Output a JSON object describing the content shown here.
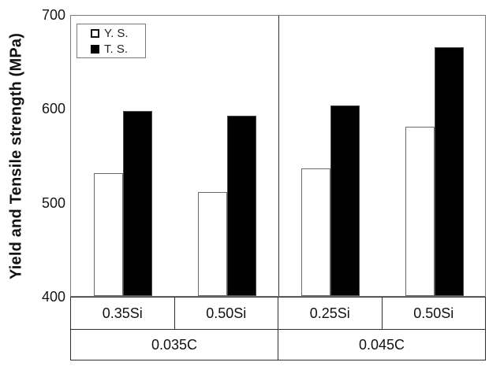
{
  "chart_data": {
    "type": "bar",
    "title": "",
    "ylabel": "Yield and Tensile strength (MPa)",
    "xlabel": "",
    "ylim": [
      400,
      700
    ],
    "yticks": [
      400,
      500,
      600,
      700
    ],
    "grid": false,
    "legend_position": "top-left",
    "categories": [
      "0.35Si",
      "0.50Si",
      "0.25Si",
      "0.50Si"
    ],
    "group_categories": [
      {
        "label": "0.035C",
        "span": 2
      },
      {
        "label": "0.045C",
        "span": 2
      }
    ],
    "series": [
      {
        "name": "Y. S.",
        "fill": "#ffffff",
        "values": [
          531,
          511,
          536,
          580
        ]
      },
      {
        "name": "T. S.",
        "fill": "#000000",
        "values": [
          597,
          592,
          603,
          665
        ]
      }
    ],
    "colors": {
      "bar_border": "#6a6a6a",
      "plot_border": "#7a7a7a",
      "table_border": "#2f2f2f",
      "text": "#111111",
      "background": "#ffffff"
    }
  }
}
